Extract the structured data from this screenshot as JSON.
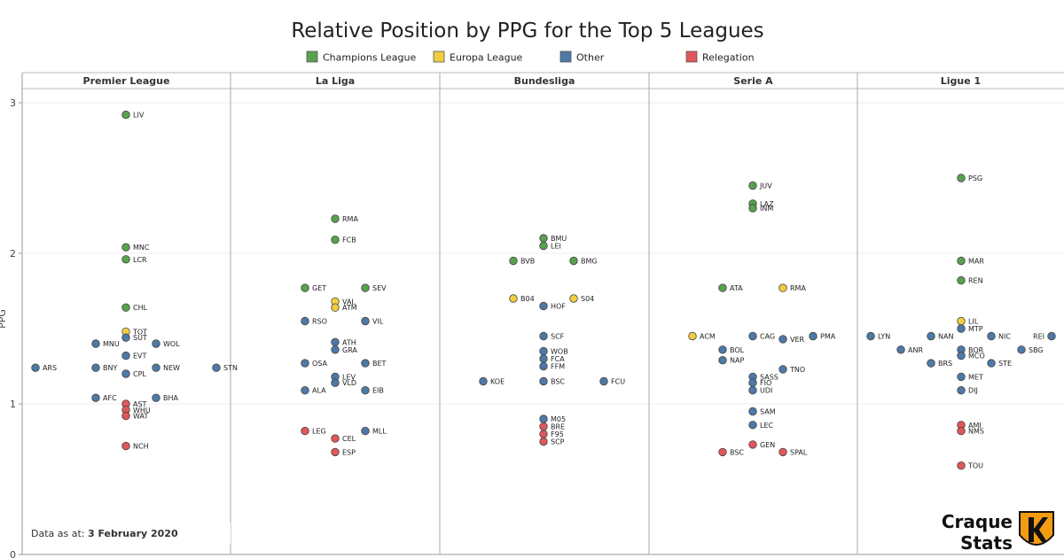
{
  "chart_data": {
    "type": "scatter",
    "title": "Relative Position by PPG for the Top 5 Leagues",
    "ylabel": "PPG",
    "ylim": [
      0,
      3.05
    ],
    "yticks": [
      0,
      1,
      2,
      3
    ],
    "grid": true,
    "legend": {
      "placement": "top",
      "entries": [
        {
          "name": "Champions League",
          "color": "#59a14f"
        },
        {
          "name": "Europa League",
          "color": "#f1ce40"
        },
        {
          "name": "Other",
          "color": "#4e79a7"
        },
        {
          "name": "Relegation",
          "color": "#e15759"
        }
      ]
    },
    "panels": [
      {
        "name": "Premier League",
        "points": [
          {
            "label": "LIV",
            "x": 0.0,
            "y": 2.92,
            "cat": 0
          },
          {
            "label": "MNC",
            "x": 0.0,
            "y": 2.04,
            "cat": 0
          },
          {
            "label": "LCR",
            "x": 0.0,
            "y": 1.96,
            "cat": 0
          },
          {
            "label": "CHL",
            "x": 0.0,
            "y": 1.64,
            "cat": 0
          },
          {
            "label": "TOT",
            "x": 0.0,
            "y": 1.48,
            "cat": 1
          },
          {
            "label": "SUT",
            "x": 0.0,
            "y": 1.44,
            "cat": 2
          },
          {
            "label": "MNU",
            "x": -1.0,
            "y": 1.4,
            "cat": 2
          },
          {
            "label": "WOL",
            "x": 1.0,
            "y": 1.4,
            "cat": 2
          },
          {
            "label": "EVT",
            "x": 0.0,
            "y": 1.32,
            "cat": 2
          },
          {
            "label": "ARS",
            "x": -3.0,
            "y": 1.24,
            "cat": 2
          },
          {
            "label": "BNY",
            "x": -1.0,
            "y": 1.24,
            "cat": 2
          },
          {
            "label": "NEW",
            "x": 1.0,
            "y": 1.24,
            "cat": 2
          },
          {
            "label": "STN",
            "x": 3.0,
            "y": 1.24,
            "cat": 2
          },
          {
            "label": "CPL",
            "x": 0.0,
            "y": 1.2,
            "cat": 2
          },
          {
            "label": "AFC",
            "x": -1.0,
            "y": 1.04,
            "cat": 2
          },
          {
            "label": "BHA",
            "x": 1.0,
            "y": 1.04,
            "cat": 2
          },
          {
            "label": "AST",
            "x": 0.0,
            "y": 1.0,
            "cat": 3
          },
          {
            "label": "WHU",
            "x": 0.0,
            "y": 0.96,
            "cat": 3
          },
          {
            "label": "WAT",
            "x": 0.0,
            "y": 0.92,
            "cat": 3
          },
          {
            "label": "NCH",
            "x": 0.0,
            "y": 0.72,
            "cat": 3
          }
        ]
      },
      {
        "name": "La Liga",
        "points": [
          {
            "label": "RMA",
            "x": 0.0,
            "y": 2.23,
            "cat": 0
          },
          {
            "label": "FCB",
            "x": 0.0,
            "y": 2.09,
            "cat": 0
          },
          {
            "label": "GET",
            "x": -1.0,
            "y": 1.77,
            "cat": 0
          },
          {
            "label": "SEV",
            "x": 1.0,
            "y": 1.77,
            "cat": 0
          },
          {
            "label": "VAL",
            "x": 0.0,
            "y": 1.68,
            "cat": 1
          },
          {
            "label": "ATM",
            "x": 0.0,
            "y": 1.64,
            "cat": 1
          },
          {
            "label": "RSO",
            "x": -1.0,
            "y": 1.55,
            "cat": 2
          },
          {
            "label": "VIL",
            "x": 1.0,
            "y": 1.55,
            "cat": 2
          },
          {
            "label": "ATH",
            "x": 0.0,
            "y": 1.41,
            "cat": 2
          },
          {
            "label": "GRA",
            "x": 0.0,
            "y": 1.36,
            "cat": 2
          },
          {
            "label": "OSA",
            "x": -1.0,
            "y": 1.27,
            "cat": 2
          },
          {
            "label": "BET",
            "x": 1.0,
            "y": 1.27,
            "cat": 2
          },
          {
            "label": "LEV",
            "x": 0.0,
            "y": 1.18,
            "cat": 2
          },
          {
            "label": "VLD",
            "x": 0.0,
            "y": 1.14,
            "cat": 2
          },
          {
            "label": "ALA",
            "x": -1.0,
            "y": 1.09,
            "cat": 2
          },
          {
            "label": "EIB",
            "x": 1.0,
            "y": 1.09,
            "cat": 2
          },
          {
            "label": "LEG",
            "x": -1.0,
            "y": 0.82,
            "cat": 3
          },
          {
            "label": "MLL",
            "x": 1.0,
            "y": 0.82,
            "cat": 2
          },
          {
            "label": "CEL",
            "x": 0.0,
            "y": 0.77,
            "cat": 3
          },
          {
            "label": "ESP",
            "x": 0.0,
            "y": 0.68,
            "cat": 3
          }
        ]
      },
      {
        "name": "Bundesliga",
        "points": [
          {
            "label": "BMU",
            "x": 0.0,
            "y": 2.1,
            "cat": 0
          },
          {
            "label": "LEI",
            "x": 0.0,
            "y": 2.05,
            "cat": 0
          },
          {
            "label": "BVB",
            "x": -1.0,
            "y": 1.95,
            "cat": 0
          },
          {
            "label": "BMG",
            "x": 1.0,
            "y": 1.95,
            "cat": 0
          },
          {
            "label": "B04",
            "x": -1.0,
            "y": 1.7,
            "cat": 1
          },
          {
            "label": "S04",
            "x": 1.0,
            "y": 1.7,
            "cat": 1
          },
          {
            "label": "HOF",
            "x": 0.0,
            "y": 1.65,
            "cat": 2
          },
          {
            "label": "SCF",
            "x": 0.0,
            "y": 1.45,
            "cat": 2
          },
          {
            "label": "WOB",
            "x": 0.0,
            "y": 1.35,
            "cat": 2
          },
          {
            "label": "FCA",
            "x": 0.0,
            "y": 1.3,
            "cat": 2
          },
          {
            "label": "FFM",
            "x": 0.0,
            "y": 1.25,
            "cat": 2
          },
          {
            "label": "KOE",
            "x": -2.0,
            "y": 1.15,
            "cat": 2
          },
          {
            "label": "BSC",
            "x": 0.0,
            "y": 1.15,
            "cat": 2
          },
          {
            "label": "FCU",
            "x": 2.0,
            "y": 1.15,
            "cat": 2
          },
          {
            "label": "M05",
            "x": 0.0,
            "y": 0.9,
            "cat": 2
          },
          {
            "label": "BRE",
            "x": 0.0,
            "y": 0.85,
            "cat": 3
          },
          {
            "label": "F95",
            "x": 0.0,
            "y": 0.8,
            "cat": 3
          },
          {
            "label": "SCP",
            "x": 0.0,
            "y": 0.75,
            "cat": 3
          }
        ]
      },
      {
        "name": "Serie A",
        "points": [
          {
            "label": "JUV",
            "x": 0.0,
            "y": 2.45,
            "cat": 0
          },
          {
            "label": "LAZ",
            "x": 0.0,
            "y": 2.33,
            "cat": 0
          },
          {
            "label": "INM",
            "x": 0.0,
            "y": 2.3,
            "cat": 0
          },
          {
            "label": "ATA",
            "x": -1.0,
            "y": 1.77,
            "cat": 0
          },
          {
            "label": "RMA",
            "x": 1.0,
            "y": 1.77,
            "cat": 1
          },
          {
            "label": "ACM",
            "x": -2.0,
            "y": 1.45,
            "cat": 1
          },
          {
            "label": "CAG",
            "x": 0.0,
            "y": 1.45,
            "cat": 2
          },
          {
            "label": "PMA",
            "x": 2.0,
            "y": 1.45,
            "cat": 2
          },
          {
            "label": "VER",
            "x": 1.0,
            "y": 1.43,
            "cat": 2
          },
          {
            "label": "BOL",
            "x": -1.0,
            "y": 1.36,
            "cat": 2
          },
          {
            "label": "NAP",
            "x": -1.0,
            "y": 1.29,
            "cat": 2
          },
          {
            "label": "TNO",
            "x": 1.0,
            "y": 1.23,
            "cat": 2
          },
          {
            "label": "SASS",
            "x": 0.0,
            "y": 1.18,
            "cat": 2
          },
          {
            "label": "FIO",
            "x": 0.0,
            "y": 1.14,
            "cat": 2
          },
          {
            "label": "UDI",
            "x": 0.0,
            "y": 1.09,
            "cat": 2
          },
          {
            "label": "SAM",
            "x": 0.0,
            "y": 0.95,
            "cat": 2
          },
          {
            "label": "LEC",
            "x": 0.0,
            "y": 0.86,
            "cat": 2
          },
          {
            "label": "GEN",
            "x": 0.0,
            "y": 0.73,
            "cat": 3
          },
          {
            "label": "BSC",
            "x": -1.0,
            "y": 0.68,
            "cat": 3
          },
          {
            "label": "SPAL",
            "x": 1.0,
            "y": 0.68,
            "cat": 3
          }
        ]
      },
      {
        "name": "Ligue 1",
        "points": [
          {
            "label": "PSG",
            "x": 0.0,
            "y": 2.5,
            "cat": 0
          },
          {
            "label": "MAR",
            "x": 0.0,
            "y": 1.95,
            "cat": 0
          },
          {
            "label": "REN",
            "x": 0.0,
            "y": 1.82,
            "cat": 0
          },
          {
            "label": "LIL",
            "x": 0.0,
            "y": 1.55,
            "cat": 1
          },
          {
            "label": "MTP",
            "x": 0.0,
            "y": 1.5,
            "cat": 2
          },
          {
            "label": "LYN",
            "x": -3.0,
            "y": 1.45,
            "cat": 2
          },
          {
            "label": "NAN",
            "x": -1.0,
            "y": 1.45,
            "cat": 2
          },
          {
            "label": "NIC",
            "x": 1.0,
            "y": 1.45,
            "cat": 2
          },
          {
            "label": "REI",
            "x": 3.0,
            "y": 1.45,
            "cat": 2
          },
          {
            "label": "ANR",
            "x": -2.0,
            "y": 1.36,
            "cat": 2
          },
          {
            "label": "BOR",
            "x": 0.0,
            "y": 1.36,
            "cat": 2
          },
          {
            "label": "SBG",
            "x": 2.0,
            "y": 1.36,
            "cat": 2
          },
          {
            "label": "MCO",
            "x": 0.0,
            "y": 1.32,
            "cat": 2
          },
          {
            "label": "BRS",
            "x": -1.0,
            "y": 1.27,
            "cat": 2
          },
          {
            "label": "STE",
            "x": 1.0,
            "y": 1.27,
            "cat": 2
          },
          {
            "label": "MET",
            "x": 0.0,
            "y": 1.18,
            "cat": 2
          },
          {
            "label": "DIJ",
            "x": 0.0,
            "y": 1.09,
            "cat": 2
          },
          {
            "label": "AMI",
            "x": 0.0,
            "y": 0.86,
            "cat": 3
          },
          {
            "label": "NMS",
            "x": 0.0,
            "y": 0.82,
            "cat": 3
          },
          {
            "label": "TOU",
            "x": 0.0,
            "y": 0.59,
            "cat": 3
          }
        ]
      }
    ]
  },
  "note": {
    "prefix": "Data as at: ",
    "date": "3 February 2020"
  },
  "logo": {
    "line1": "Craque",
    "line2": "Stats",
    "badge_color": "#f39c12"
  }
}
